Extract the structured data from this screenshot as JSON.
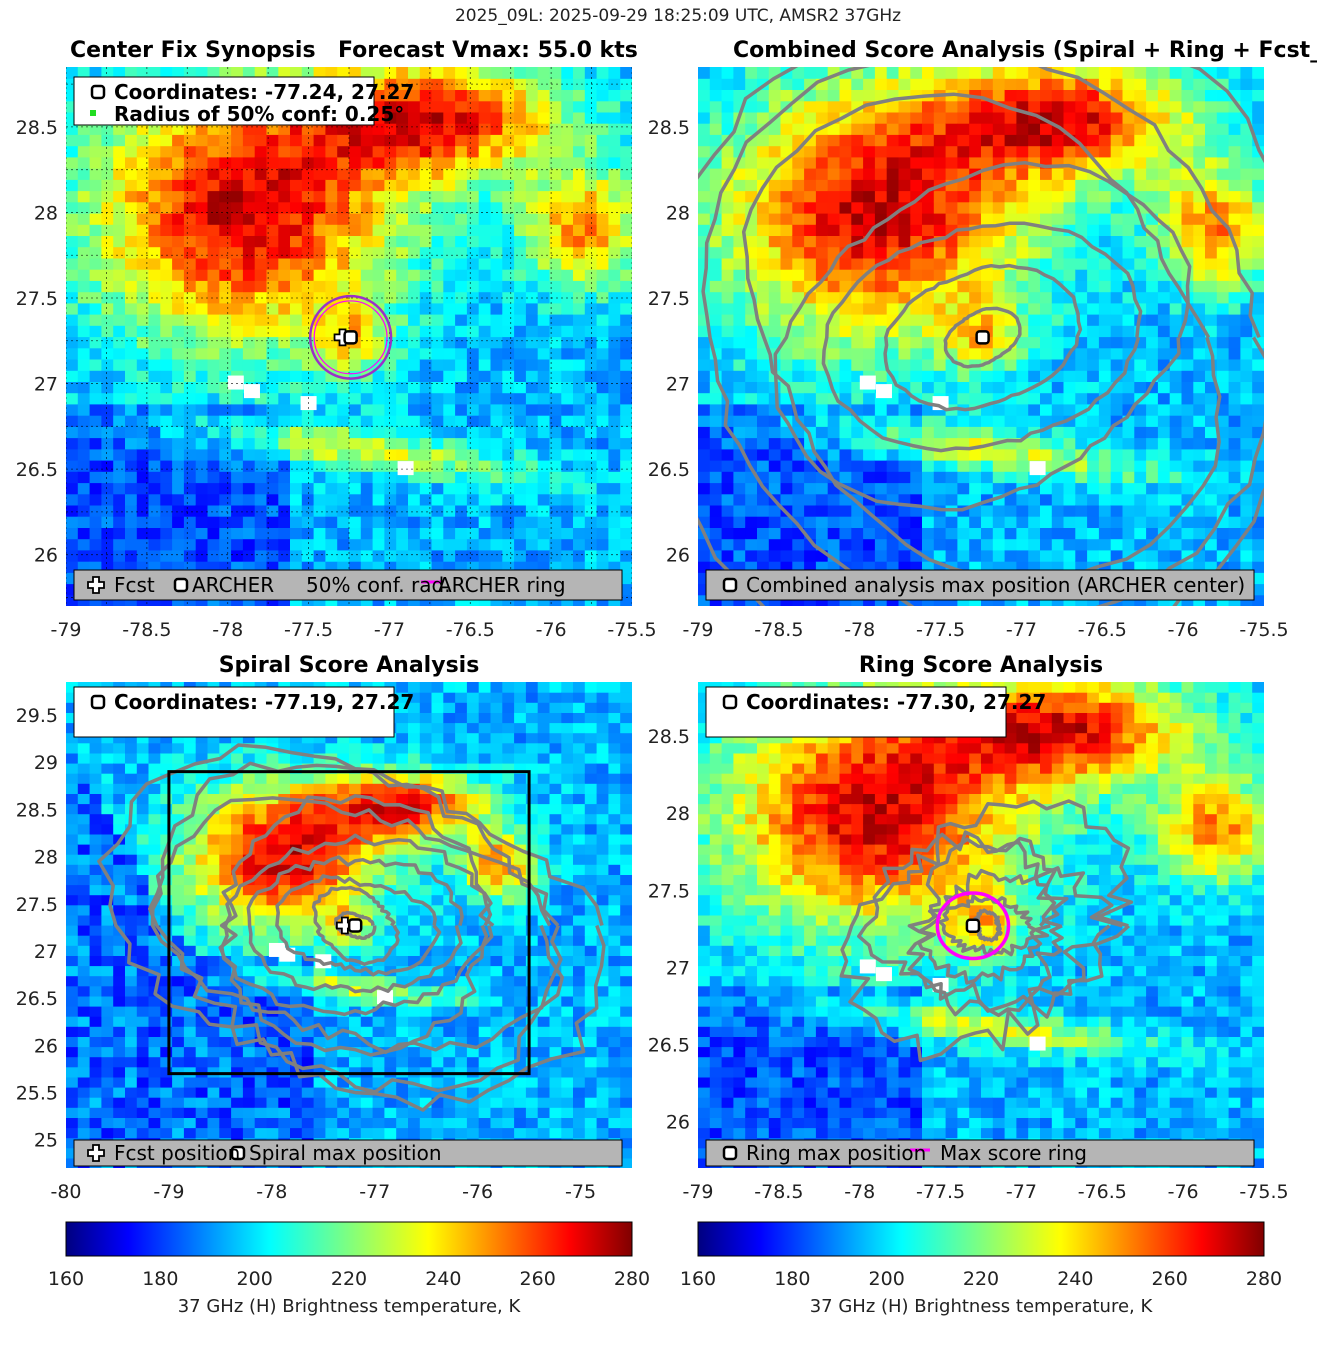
{
  "figure": {
    "suptitle": "2025_09L: 2025-09-29 18:25:09 UTC, AMSR2 37GHz"
  },
  "colors": {
    "contour": "#808080",
    "conf_circle": "#9b30c8",
    "ring": "#ff00ff",
    "legend_bg": "#b5b5b5"
  },
  "chart_data": [
    {
      "type": "heatmap",
      "panel": "center_fix_synopsis",
      "title": "Center Fix Synopsis",
      "title_right": "Forecast Vmax: 55.0 kts",
      "xlim": [
        -79.0,
        -75.5
      ],
      "ylim": [
        25.7,
        28.85
      ],
      "xticks": [
        -79,
        -78.5,
        -78,
        -77.5,
        -77,
        -76.5,
        -76,
        -75.5
      ],
      "yticks": [
        26,
        26.5,
        27,
        27.5,
        28,
        28.5
      ],
      "grid": true,
      "info_box": [
        "Coordinates: -77.24, 27.27",
        "Radius of 50% conf: 0.25°"
      ],
      "legend": [
        "Fcst",
        "ARCHER",
        "50% conf. rad.",
        "ARCHER ring"
      ],
      "points": {
        "fcst": [
          -77.29,
          27.27
        ],
        "archer": [
          -77.24,
          27.27
        ]
      },
      "conf_radius_deg": 0.25
    },
    {
      "type": "heatmap",
      "panel": "combined_score",
      "title": "Combined Score Analysis (Spiral + Ring + Fcst_Pe",
      "xlim": [
        -79.0,
        -75.5
      ],
      "ylim": [
        25.7,
        28.85
      ],
      "xticks": [
        -79,
        -78.5,
        -78,
        -77.5,
        -77,
        -76.5,
        -76,
        -75.5
      ],
      "yticks": [
        26,
        26.5,
        27,
        27.5,
        28,
        28.5
      ],
      "legend": [
        "Combined analysis max position (ARCHER center)"
      ],
      "points": {
        "max": [
          -77.24,
          27.27
        ]
      }
    },
    {
      "type": "heatmap",
      "panel": "spiral_score",
      "title": "Spiral Score Analysis",
      "xlim": [
        -80.0,
        -74.5
      ],
      "ylim": [
        24.7,
        29.85
      ],
      "xticks": [
        -80,
        -79,
        -78,
        -77,
        -76,
        -75
      ],
      "yticks": [
        25,
        25.5,
        26,
        26.5,
        27,
        27.5,
        28,
        28.5,
        29,
        29.5
      ],
      "info_box": [
        "Coordinates: -77.19, 27.27"
      ],
      "legend": [
        "Fcst position",
        "Spiral max position"
      ],
      "points": {
        "fcst": [
          -77.29,
          27.27
        ],
        "max": [
          -77.19,
          27.27
        ]
      },
      "search_box": {
        "lon": [
          -79.0,
          -75.5
        ],
        "lat": [
          25.7,
          28.9
        ]
      }
    },
    {
      "type": "heatmap",
      "panel": "ring_score",
      "title": "Ring Score Analysis",
      "xlim": [
        -79.0,
        -75.5
      ],
      "ylim": [
        25.7,
        28.85
      ],
      "xticks": [
        -79,
        -78.5,
        -78,
        -77.5,
        -77,
        -76.5,
        -76,
        -75.5
      ],
      "yticks": [
        26,
        26.5,
        27,
        27.5,
        28,
        28.5
      ],
      "info_box": [
        "Coordinates: -77.30, 27.27"
      ],
      "legend": [
        "Ring max position",
        "Max score ring"
      ],
      "points": {
        "max": [
          -77.3,
          27.27
        ]
      },
      "ring_radius_deg": 0.22
    }
  ],
  "colorbars": [
    {
      "label": "37 GHz (H) Brightness temperature, K",
      "ticks": [
        160,
        180,
        200,
        220,
        240,
        260,
        280
      ],
      "range": [
        160,
        280
      ],
      "colormap": "jet"
    },
    {
      "label": "37 GHz (H) Brightness temperature, K",
      "ticks": [
        160,
        180,
        200,
        220,
        240,
        260,
        280
      ],
      "range": [
        160,
        280
      ],
      "colormap": "jet"
    }
  ]
}
